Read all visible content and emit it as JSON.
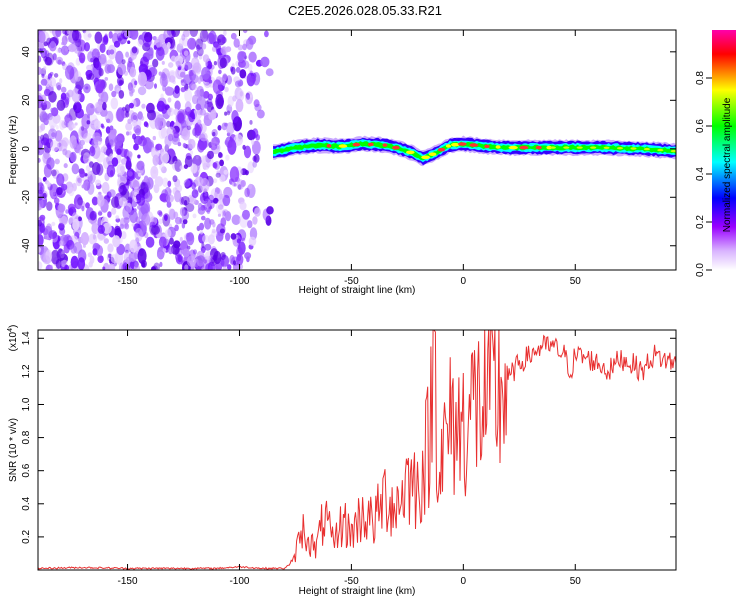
{
  "title": "C2E5.2026.028.05.33.R21",
  "chart_data": [
    {
      "type": "heatmap",
      "name": "spectrogram",
      "xlabel": "Height of straight line (km)",
      "ylabel": "Frequency (Hz)",
      "xlim": [
        -190,
        95
      ],
      "ylim": [
        -50,
        49
      ],
      "x_ticks": [
        -150,
        -100,
        -50,
        0,
        50
      ],
      "x_tick_labels": [
        "-150",
        "-100",
        "-50",
        "0",
        "50"
      ],
      "y_ticks": [
        -40,
        -20,
        0,
        20,
        40
      ],
      "y_tick_labels": [
        "-40",
        "-20",
        "0",
        "20",
        "40"
      ],
      "colorbar": {
        "label": "Normalized spectral amplitude",
        "range": [
          0.0,
          1.0
        ],
        "ticks": [
          0.0,
          0.2,
          0.4,
          0.6,
          0.8
        ],
        "tick_labels": [
          "0.0",
          "0.2",
          "0.4",
          "0.6",
          "0.8"
        ],
        "colors": [
          "#ffffff",
          "#9900ff",
          "#0000ff",
          "#00ffff",
          "#00ff00",
          "#ffff00",
          "#ff0000",
          "#ff00aa"
        ]
      },
      "noise_region_km": [
        -190,
        -85
      ],
      "signal_band_center_hz": [
        [
          -85,
          -1.5
        ],
        [
          -75,
          0.5
        ],
        [
          -65,
          1.5
        ],
        [
          -55,
          1.0
        ],
        [
          -45,
          2.0
        ],
        [
          -35,
          1.5
        ],
        [
          -28,
          0.0
        ],
        [
          -22,
          -2.0
        ],
        [
          -18,
          -4.0
        ],
        [
          -12,
          -1.5
        ],
        [
          -6,
          1.5
        ],
        [
          0,
          2.0
        ],
        [
          10,
          1.0
        ],
        [
          20,
          0.5
        ],
        [
          40,
          0.5
        ],
        [
          60,
          0.5
        ],
        [
          80,
          0.0
        ],
        [
          95,
          -1.0
        ]
      ],
      "signal_band_halfwidth_hz": 2.5,
      "signal_colors": [
        "#3300ff",
        "#00ffff",
        "#00ff00",
        "#ff3333"
      ]
    },
    {
      "type": "line",
      "name": "snr",
      "xlabel": "Height of straight line (km)",
      "ylabel": "SNR (10 * v/v)",
      "multiplier_label": "(x10",
      "multiplier_exponent": "4",
      "xlim": [
        -190,
        95
      ],
      "ylim": [
        0.0,
        1.45
      ],
      "x_ticks": [
        -150,
        -100,
        -50,
        0,
        50
      ],
      "x_tick_labels": [
        "-150",
        "-100",
        "-50",
        "0",
        "50"
      ],
      "y_ticks": [
        0.2,
        0.4,
        0.6,
        0.8,
        1.0,
        1.2,
        1.4
      ],
      "y_tick_labels": [
        "0.2",
        "0.4",
        "0.6",
        "0.8",
        "1.0",
        "1.2",
        "1.4"
      ],
      "color": "#e83030",
      "series": [
        {
          "name": "SNR",
          "points": [
            [
              -190,
              0.01
            ],
            [
              -170,
              0.015
            ],
            [
              -150,
              0.01
            ],
            [
              -130,
              0.01
            ],
            [
              -110,
              0.01
            ],
            [
              -100,
              0.02
            ],
            [
              -90,
              0.01
            ],
            [
              -80,
              0.01
            ],
            [
              -76,
              0.05
            ],
            [
              -74,
              0.15
            ],
            [
              -72,
              0.25
            ],
            [
              -66,
              0.12
            ],
            [
              -62,
              0.33
            ],
            [
              -58,
              0.15
            ],
            [
              -54,
              0.3
            ],
            [
              -50,
              0.22
            ],
            [
              -45,
              0.35
            ],
            [
              -40,
              0.28
            ],
            [
              -35,
              0.45
            ],
            [
              -30,
              0.38
            ],
            [
              -25,
              0.55
            ],
            [
              -20,
              0.5
            ],
            [
              -15,
              0.8
            ],
            [
              -13,
              1.44
            ],
            [
              -11,
              0.65
            ],
            [
              -8,
              0.75
            ],
            [
              -5,
              0.9
            ],
            [
              -2,
              0.85
            ],
            [
              0,
              0.9
            ],
            [
              5,
              1.0
            ],
            [
              10,
              1.0
            ],
            [
              15,
              1.05
            ],
            [
              20,
              1.15
            ],
            [
              25,
              1.25
            ],
            [
              30,
              1.3
            ],
            [
              35,
              1.35
            ],
            [
              40,
              1.35
            ],
            [
              45,
              1.3
            ],
            [
              48,
              1.2
            ],
            [
              50,
              1.3
            ],
            [
              55,
              1.28
            ],
            [
              60,
              1.25
            ],
            [
              65,
              1.2
            ],
            [
              70,
              1.28
            ],
            [
              75,
              1.25
            ],
            [
              80,
              1.2
            ],
            [
              85,
              1.3
            ],
            [
              90,
              1.27
            ],
            [
              95,
              1.25
            ]
          ]
        }
      ]
    }
  ]
}
